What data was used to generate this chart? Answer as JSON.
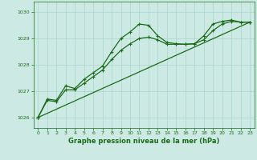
{
  "title": "Graphe pression niveau de la mer (hPa)",
  "background_color": "#cde9e4",
  "grid_color": "#a8d5cc",
  "line_color": "#1a6b1a",
  "marker_color": "#1a6b1a",
  "xlim": [
    -0.5,
    23.5
  ],
  "ylim": [
    1025.6,
    1030.4
  ],
  "yticks": [
    1026,
    1027,
    1028,
    1029,
    1030
  ],
  "xticks": [
    0,
    1,
    2,
    3,
    4,
    5,
    6,
    7,
    8,
    9,
    10,
    11,
    12,
    13,
    14,
    15,
    16,
    17,
    18,
    19,
    20,
    21,
    22,
    23
  ],
  "series1_x": [
    0,
    1,
    2,
    3,
    4,
    5,
    6,
    7,
    8,
    9,
    10,
    11,
    12,
    13,
    14,
    15,
    16,
    17,
    18,
    19,
    20,
    21,
    22,
    23
  ],
  "series1_y": [
    1026.0,
    1026.7,
    1026.65,
    1027.2,
    1027.1,
    1027.45,
    1027.7,
    1027.95,
    1028.5,
    1029.0,
    1029.25,
    1029.55,
    1029.5,
    1029.1,
    1028.85,
    1028.8,
    1028.78,
    1028.8,
    1029.1,
    1029.55,
    1029.65,
    1029.7,
    1029.62,
    1029.62
  ],
  "series2_x": [
    0,
    1,
    2,
    3,
    4,
    5,
    6,
    7,
    8,
    9,
    10,
    11,
    12,
    13,
    14,
    15,
    16,
    17,
    18,
    19,
    20,
    21,
    22,
    23
  ],
  "series2_y": [
    1026.0,
    1026.65,
    1026.6,
    1027.05,
    1027.05,
    1027.3,
    1027.55,
    1027.8,
    1028.2,
    1028.55,
    1028.8,
    1029.0,
    1029.05,
    1028.95,
    1028.78,
    1028.78,
    1028.78,
    1028.8,
    1028.95,
    1029.3,
    1029.55,
    1029.65,
    1029.62,
    1029.62
  ],
  "series3_x": [
    0,
    23
  ],
  "series3_y": [
    1026.0,
    1029.62
  ]
}
